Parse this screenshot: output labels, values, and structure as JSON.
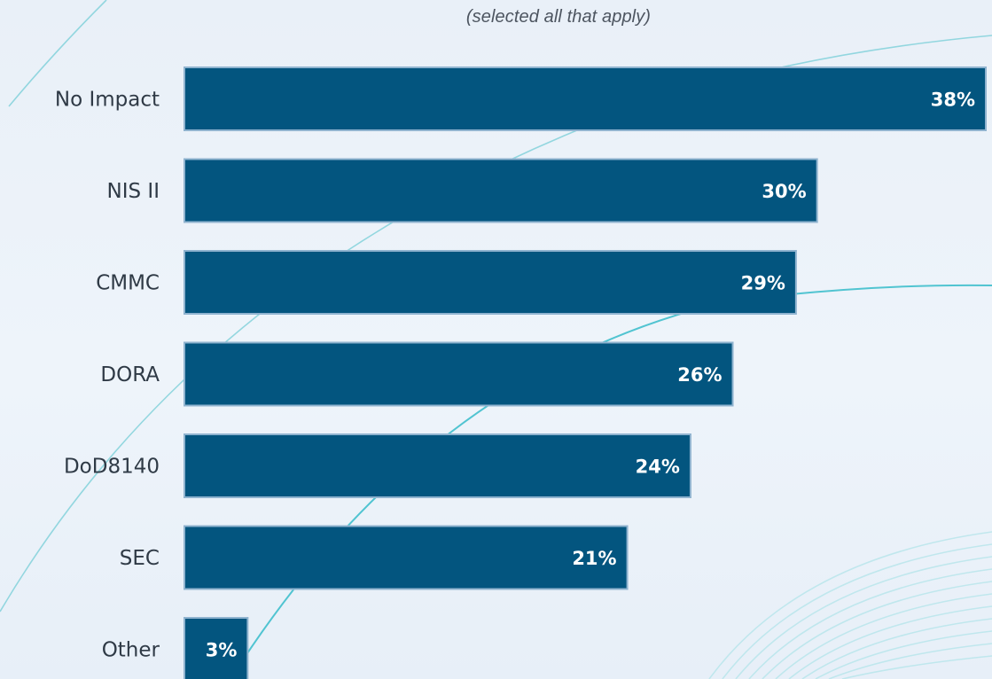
{
  "subtitle": "(selected all that apply)",
  "colors": {
    "bar": "#03557f",
    "bar_edge": "#8fb3cf",
    "accent_line": "#4cc4d0"
  },
  "chart_data": {
    "type": "bar",
    "orientation": "horizontal",
    "subtitle": "(selected all that apply)",
    "categories": [
      "No Impact",
      "NIS II",
      "CMMC",
      "DORA",
      "DoD8140",
      "SEC",
      "Other"
    ],
    "values": [
      38,
      30,
      29,
      26,
      24,
      21,
      3
    ],
    "value_labels": [
      "38%",
      "30%",
      "29%",
      "26%",
      "24%",
      "21%",
      "3%"
    ],
    "unit": "%",
    "xlim": [
      0,
      38
    ],
    "grid": false,
    "legend": "none"
  }
}
